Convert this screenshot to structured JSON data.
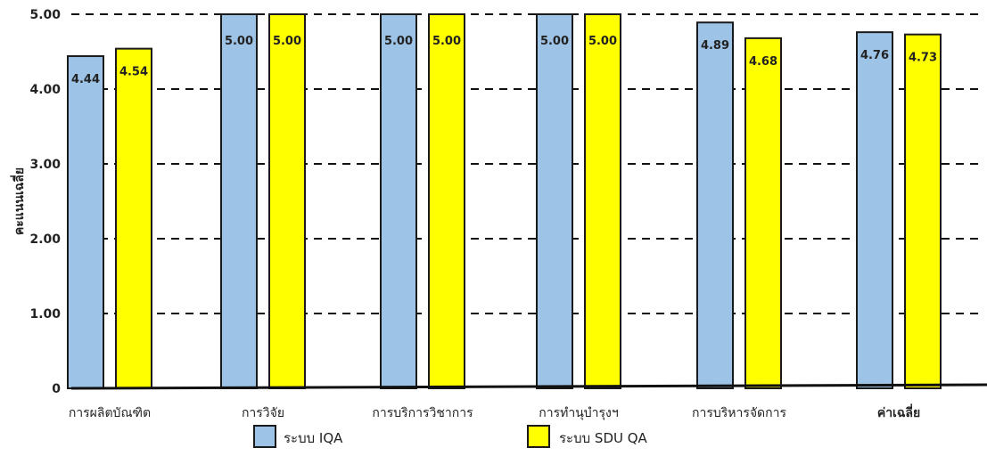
{
  "chart_data": {
    "type": "bar",
    "title": "",
    "xlabel": "",
    "ylabel": "คะแนนเฉลี่ย",
    "ylim": [
      0,
      5
    ],
    "yticks": [
      "0",
      "1.00",
      "2.00",
      "3.00",
      "4.00",
      "5.00"
    ],
    "grid": true,
    "legend_position": "bottom",
    "categories": [
      "การผลิตบัณฑิต",
      "การวิจัย",
      "การบริการวิชาการ",
      "การทำนุบำรุงฯ",
      "การบริหารจัดการ",
      "ค่าเฉลี่ย"
    ],
    "series": [
      {
        "name": "ระบบ IQA",
        "color": "#9DC3E6",
        "values": [
          4.44,
          5.0,
          5.0,
          5.0,
          4.89,
          4.76
        ],
        "labels": [
          "4.44",
          "5.00",
          "5.00",
          "5.00",
          "4.89",
          "4.76"
        ]
      },
      {
        "name": "ระบบ SDU QA",
        "color": "#FFFF00",
        "values": [
          4.54,
          5.0,
          5.0,
          5.0,
          4.68,
          4.73
        ],
        "labels": [
          "4.54",
          "5.00",
          "5.00",
          "5.00",
          "4.68",
          "4.73"
        ]
      }
    ]
  }
}
